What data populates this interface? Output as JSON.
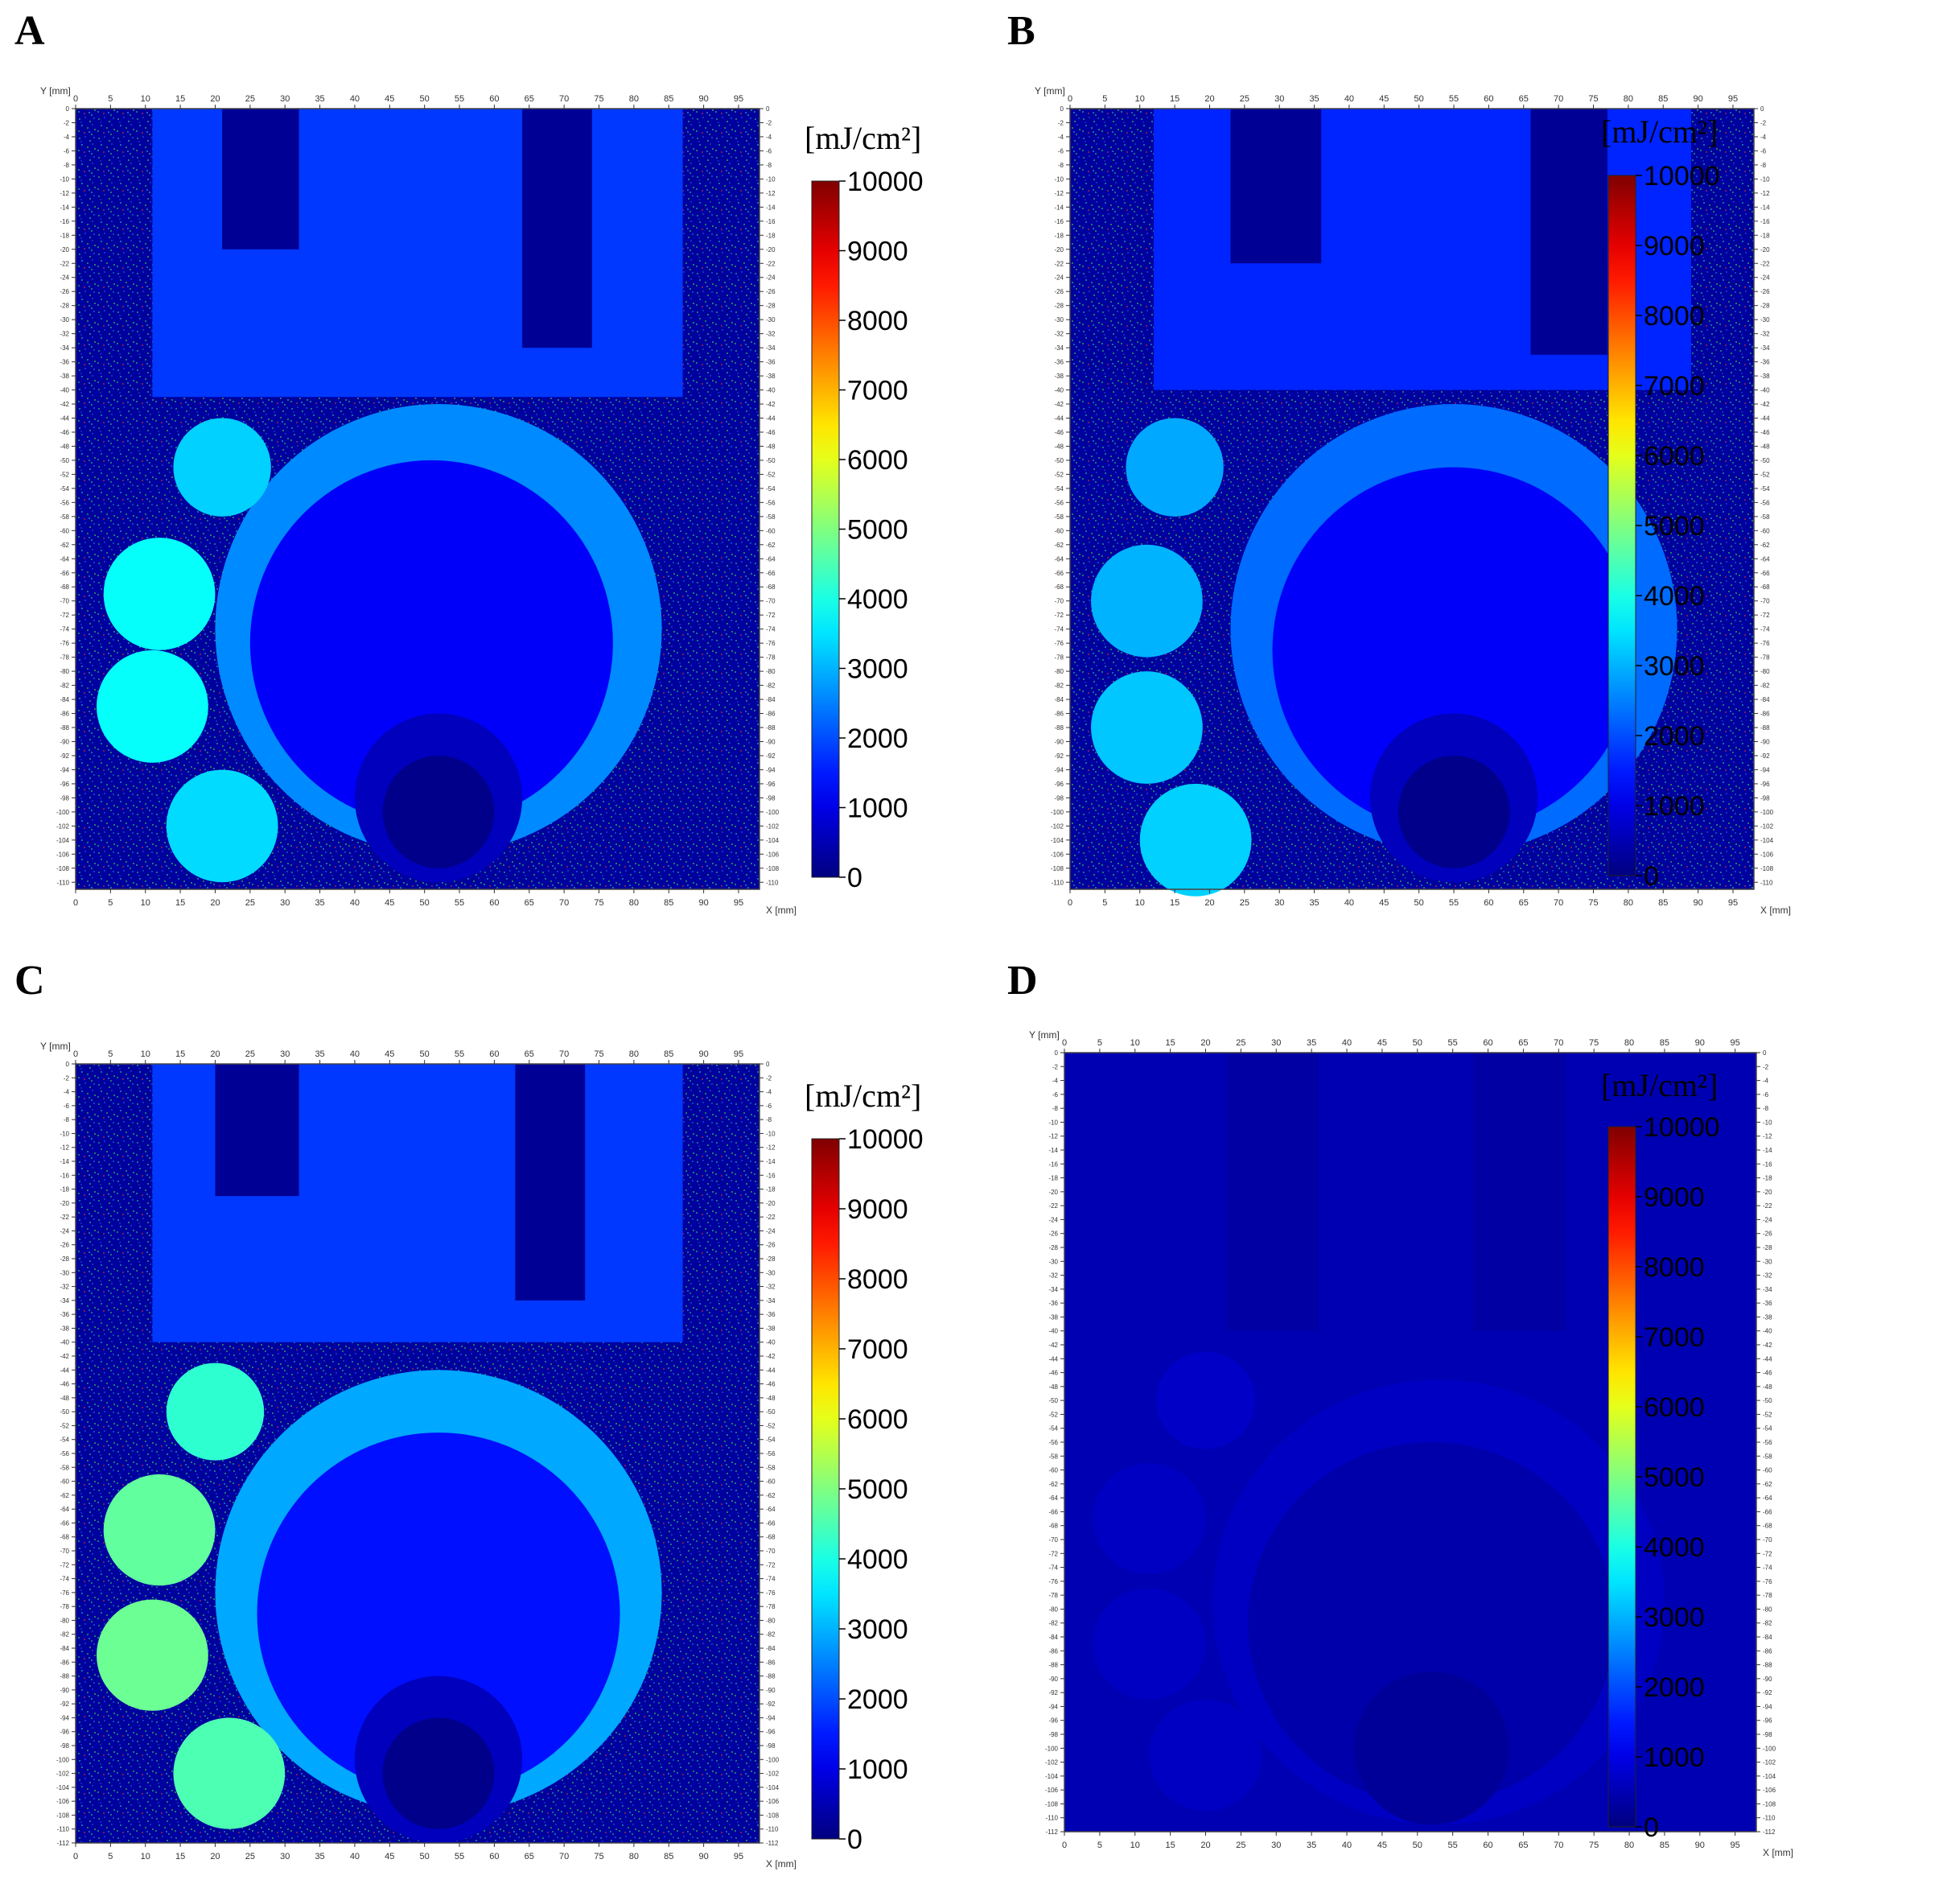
{
  "figure": {
    "colorbar": {
      "unit_label": "[mJ/cm²]",
      "ticks": [
        "10000",
        "9000",
        "8000",
        "7000",
        "6000",
        "5000",
        "4000",
        "3000",
        "2000",
        "1000",
        "0"
      ],
      "range": [
        0,
        10000
      ],
      "colormap": "jet"
    },
    "x_axis_title": "X [mm]",
    "y_axis_title": "Y [mm]"
  },
  "chart_data": [
    {
      "type": "heatmap",
      "panel": "A",
      "xlabel": "X [mm]",
      "ylabel": "Y [mm]",
      "xlim": [
        0,
        98
      ],
      "ylim": [
        -111,
        0
      ],
      "x_ticks": [
        0,
        5,
        10,
        15,
        20,
        25,
        30,
        35,
        40,
        45,
        50,
        55,
        60,
        65,
        70,
        75,
        80,
        85,
        90,
        95
      ],
      "y_tick_step": 2,
      "colorbar_unit": "[mJ/cm²]",
      "colorbar_range": [
        0,
        10000
      ],
      "regions": [
        {
          "shape": "rect",
          "x": [
            11,
            87
          ],
          "y": [
            -41,
            0
          ],
          "fluence": 1800
        },
        {
          "shape": "rect",
          "x": [
            21,
            32
          ],
          "y": [
            -20,
            0
          ],
          "fluence": 200
        },
        {
          "shape": "rect",
          "x": [
            64,
            74
          ],
          "y": [
            -34,
            0
          ],
          "fluence": 200
        },
        {
          "shape": "circle",
          "cx": 52,
          "cy": -74,
          "r": 32,
          "fluence": 2600
        },
        {
          "shape": "circle",
          "cx": 51,
          "cy": -76,
          "r": 26,
          "fluence": 1200
        },
        {
          "shape": "circle",
          "cx": 52,
          "cy": -98,
          "r": 12,
          "fluence": 600
        },
        {
          "shape": "circle",
          "cx": 52,
          "cy": -100,
          "r": 8,
          "fluence": 100
        },
        {
          "shape": "circle",
          "cx": 21,
          "cy": -51,
          "r": 7,
          "fluence": 3300
        },
        {
          "shape": "circle",
          "cx": 12,
          "cy": -69,
          "r": 8,
          "fluence": 3800
        },
        {
          "shape": "circle",
          "cx": 11,
          "cy": -85,
          "r": 8,
          "fluence": 3800
        },
        {
          "shape": "circle",
          "cx": 21,
          "cy": -102,
          "r": 8,
          "fluence": 3400
        }
      ]
    },
    {
      "type": "heatmap",
      "panel": "B",
      "xlabel": "X [mm]",
      "ylabel": "Y [mm]",
      "xlim": [
        0,
        98
      ],
      "ylim": [
        -111,
        0
      ],
      "x_ticks": [
        0,
        5,
        10,
        15,
        20,
        25,
        30,
        35,
        40,
        45,
        50,
        55,
        60,
        65,
        70,
        75,
        80,
        85,
        90,
        95
      ],
      "y_tick_step": 2,
      "colorbar_unit": "[mJ/cm²]",
      "colorbar_range": [
        0,
        10000
      ],
      "regions": [
        {
          "shape": "rect",
          "x": [
            12,
            89
          ],
          "y": [
            -40,
            0
          ],
          "fluence": 1600
        },
        {
          "shape": "rect",
          "x": [
            23,
            36
          ],
          "y": [
            -22,
            0
          ],
          "fluence": 200
        },
        {
          "shape": "rect",
          "x": [
            66,
            77
          ],
          "y": [
            -35,
            0
          ],
          "fluence": 200
        },
        {
          "shape": "circle",
          "cx": 55,
          "cy": -74,
          "r": 32,
          "fluence": 2300
        },
        {
          "shape": "circle",
          "cx": 55,
          "cy": -77,
          "r": 26,
          "fluence": 1200
        },
        {
          "shape": "circle",
          "cx": 55,
          "cy": -98,
          "r": 12,
          "fluence": 600
        },
        {
          "shape": "circle",
          "cx": 55,
          "cy": -100,
          "r": 8,
          "fluence": 100
        },
        {
          "shape": "circle",
          "cx": 15,
          "cy": -51,
          "r": 7,
          "fluence": 2900
        },
        {
          "shape": "circle",
          "cx": 11,
          "cy": -70,
          "r": 8,
          "fluence": 3000
        },
        {
          "shape": "circle",
          "cx": 11,
          "cy": -88,
          "r": 8,
          "fluence": 3200
        },
        {
          "shape": "circle",
          "cx": 18,
          "cy": -104,
          "r": 8,
          "fluence": 3300
        }
      ]
    },
    {
      "type": "heatmap",
      "panel": "C",
      "xlabel": "X [mm]",
      "ylabel": "Y [mm]",
      "xlim": [
        0,
        98
      ],
      "ylim": [
        -112,
        0
      ],
      "x_ticks": [
        0,
        5,
        10,
        15,
        20,
        25,
        30,
        35,
        40,
        45,
        50,
        55,
        60,
        65,
        70,
        75,
        80,
        85,
        90,
        95
      ],
      "y_tick_step": 2,
      "colorbar_unit": "[mJ/cm²]",
      "colorbar_range": [
        0,
        10000
      ],
      "regions": [
        {
          "shape": "rect",
          "x": [
            11,
            87
          ],
          "y": [
            -40,
            0
          ],
          "fluence": 1800
        },
        {
          "shape": "rect",
          "x": [
            20,
            32
          ],
          "y": [
            -19,
            0
          ],
          "fluence": 200
        },
        {
          "shape": "rect",
          "x": [
            63,
            73
          ],
          "y": [
            -34,
            0
          ],
          "fluence": 200
        },
        {
          "shape": "circle",
          "cx": 52,
          "cy": -76,
          "r": 32,
          "fluence": 2900
        },
        {
          "shape": "circle",
          "cx": 52,
          "cy": -79,
          "r": 26,
          "fluence": 1400
        },
        {
          "shape": "circle",
          "cx": 52,
          "cy": -100,
          "r": 12,
          "fluence": 600
        },
        {
          "shape": "circle",
          "cx": 52,
          "cy": -102,
          "r": 8,
          "fluence": 100
        },
        {
          "shape": "circle",
          "cx": 20,
          "cy": -50,
          "r": 7,
          "fluence": 4200
        },
        {
          "shape": "circle",
          "cx": 12,
          "cy": -67,
          "r": 8,
          "fluence": 4700
        },
        {
          "shape": "circle",
          "cx": 11,
          "cy": -85,
          "r": 8,
          "fluence": 4800
        },
        {
          "shape": "circle",
          "cx": 22,
          "cy": -102,
          "r": 8,
          "fluence": 4500
        }
      ]
    },
    {
      "type": "heatmap",
      "panel": "D",
      "xlabel": "X [mm]",
      "ylabel": "Y [mm]",
      "xlim": [
        0,
        98
      ],
      "ylim": [
        -112,
        0
      ],
      "x_ticks": [
        0,
        5,
        10,
        15,
        20,
        25,
        30,
        35,
        40,
        45,
        50,
        55,
        60,
        65,
        70,
        75,
        80,
        85,
        90,
        95
      ],
      "y_tick_step": 2,
      "colorbar_unit": "[mJ/cm²]",
      "colorbar_range": [
        0,
        10000
      ],
      "regions": [
        {
          "shape": "rect",
          "x": [
            13,
            88
          ],
          "y": [
            -40,
            0
          ],
          "fluence": 500
        },
        {
          "shape": "rect",
          "x": [
            23,
            36
          ],
          "y": [
            -40,
            0
          ],
          "fluence": 350
        },
        {
          "shape": "rect",
          "x": [
            58,
            71
          ],
          "y": [
            -40,
            0
          ],
          "fluence": 350
        },
        {
          "shape": "circle",
          "cx": 53,
          "cy": -79,
          "r": 32,
          "fluence": 650
        },
        {
          "shape": "circle",
          "cx": 52,
          "cy": -82,
          "r": 26,
          "fluence": 420
        },
        {
          "shape": "circle",
          "cx": 52,
          "cy": -100,
          "r": 11,
          "fluence": 250
        },
        {
          "shape": "circle",
          "cx": 20,
          "cy": -50,
          "r": 7,
          "fluence": 700
        },
        {
          "shape": "circle",
          "cx": 12,
          "cy": -67,
          "r": 8,
          "fluence": 650
        },
        {
          "shape": "circle",
          "cx": 12,
          "cy": -85,
          "r": 8,
          "fluence": 650
        },
        {
          "shape": "circle",
          "cx": 20,
          "cy": -101,
          "r": 8,
          "fluence": 650
        }
      ]
    }
  ]
}
